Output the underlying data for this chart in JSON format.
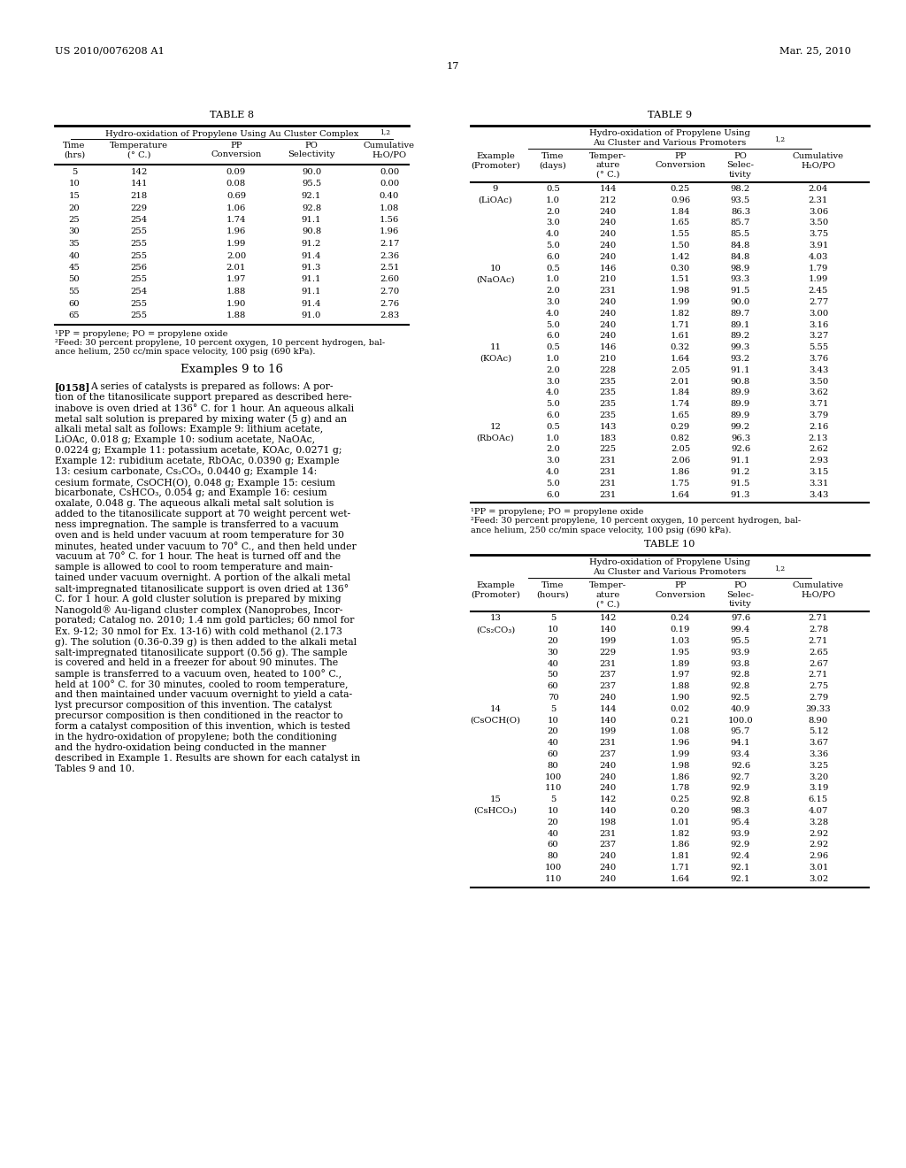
{
  "header_left": "US 2010/0076208 A1",
  "header_right": "Mar. 25, 2010",
  "page_number": "17",
  "table8": {
    "title": "TABLE 8",
    "subtitle": "Hydro-oxidation of Propylene Using Au Cluster Complex",
    "subtitle_sup": "1,2",
    "data": [
      [
        5,
        142,
        0.09,
        90.0,
        0.0
      ],
      [
        10,
        141,
        0.08,
        95.5,
        0.0
      ],
      [
        15,
        218,
        0.69,
        92.1,
        0.4
      ],
      [
        20,
        229,
        1.06,
        92.8,
        1.08
      ],
      [
        25,
        254,
        1.74,
        91.1,
        1.56
      ],
      [
        30,
        255,
        1.96,
        90.8,
        1.96
      ],
      [
        35,
        255,
        1.99,
        91.2,
        2.17
      ],
      [
        40,
        255,
        2.0,
        91.4,
        2.36
      ],
      [
        45,
        256,
        2.01,
        91.3,
        2.51
      ],
      [
        50,
        255,
        1.97,
        91.1,
        2.6
      ],
      [
        55,
        254,
        1.88,
        91.1,
        2.7
      ],
      [
        60,
        255,
        1.9,
        91.4,
        2.76
      ],
      [
        65,
        255,
        1.88,
        91.0,
        2.83
      ]
    ],
    "footnote1": "¹PP = propylene; PO = propylene oxide",
    "footnote2a": "²Feed: 30 percent propylene, 10 percent oxygen, 10 percent hydrogen, bal-",
    "footnote2b": "ance helium, 250 cc/min space velocity, 100 psig (690 kPa)."
  },
  "table9": {
    "title": "TABLE 9",
    "subtitle_line1": "Hydro-oxidation of Propylene Using",
    "subtitle_line2": "Au Cluster and Various Promoters",
    "subtitle_sup": "1,2",
    "data": [
      [
        "9",
        "0.5",
        "144",
        "0.25",
        "98.2",
        "2.04"
      ],
      [
        "(LiOAc)",
        "1.0",
        "212",
        "0.96",
        "93.5",
        "2.31"
      ],
      [
        "",
        "2.0",
        "240",
        "1.84",
        "86.3",
        "3.06"
      ],
      [
        "",
        "3.0",
        "240",
        "1.65",
        "85.7",
        "3.50"
      ],
      [
        "",
        "4.0",
        "240",
        "1.55",
        "85.5",
        "3.75"
      ],
      [
        "",
        "5.0",
        "240",
        "1.50",
        "84.8",
        "3.91"
      ],
      [
        "",
        "6.0",
        "240",
        "1.42",
        "84.8",
        "4.03"
      ],
      [
        "10",
        "0.5",
        "146",
        "0.30",
        "98.9",
        "1.79"
      ],
      [
        "(NaOAc)",
        "1.0",
        "210",
        "1.51",
        "93.3",
        "1.99"
      ],
      [
        "",
        "2.0",
        "231",
        "1.98",
        "91.5",
        "2.45"
      ],
      [
        "",
        "3.0",
        "240",
        "1.99",
        "90.0",
        "2.77"
      ],
      [
        "",
        "4.0",
        "240",
        "1.82",
        "89.7",
        "3.00"
      ],
      [
        "",
        "5.0",
        "240",
        "1.71",
        "89.1",
        "3.16"
      ],
      [
        "",
        "6.0",
        "240",
        "1.61",
        "89.2",
        "3.27"
      ],
      [
        "11",
        "0.5",
        "146",
        "0.32",
        "99.3",
        "5.55"
      ],
      [
        "(KOAc)",
        "1.0",
        "210",
        "1.64",
        "93.2",
        "3.76"
      ],
      [
        "",
        "2.0",
        "228",
        "2.05",
        "91.1",
        "3.43"
      ],
      [
        "",
        "3.0",
        "235",
        "2.01",
        "90.8",
        "3.50"
      ],
      [
        "",
        "4.0",
        "235",
        "1.84",
        "89.9",
        "3.62"
      ],
      [
        "",
        "5.0",
        "235",
        "1.74",
        "89.9",
        "3.71"
      ],
      [
        "",
        "6.0",
        "235",
        "1.65",
        "89.9",
        "3.79"
      ],
      [
        "12",
        "0.5",
        "143",
        "0.29",
        "99.2",
        "2.16"
      ],
      [
        "(RbOAc)",
        "1.0",
        "183",
        "0.82",
        "96.3",
        "2.13"
      ],
      [
        "",
        "2.0",
        "225",
        "2.05",
        "92.6",
        "2.62"
      ],
      [
        "",
        "3.0",
        "231",
        "2.06",
        "91.1",
        "2.93"
      ],
      [
        "",
        "4.0",
        "231",
        "1.86",
        "91.2",
        "3.15"
      ],
      [
        "",
        "5.0",
        "231",
        "1.75",
        "91.5",
        "3.31"
      ],
      [
        "",
        "6.0",
        "231",
        "1.64",
        "91.3",
        "3.43"
      ]
    ],
    "footnote1": "¹PP = propylene; PO = propylene oxide",
    "footnote2a": "²Feed: 30 percent propylene, 10 percent oxygen, 10 percent hydrogen, bal-",
    "footnote2b": "ance helium, 250 cc/min space velocity, 100 psig (690 kPa)."
  },
  "table10": {
    "title": "TABLE 10",
    "subtitle_line1": "Hydro-oxidation of Propylene Using",
    "subtitle_line2": "Au Cluster and Various Promoters",
    "subtitle_sup": "1,2",
    "data": [
      [
        "13",
        "5",
        "142",
        "0.24",
        "97.6",
        "2.71"
      ],
      [
        "(Cs₂CO₃)",
        "10",
        "140",
        "0.19",
        "99.4",
        "2.78"
      ],
      [
        "",
        "20",
        "199",
        "1.03",
        "95.5",
        "2.71"
      ],
      [
        "",
        "30",
        "229",
        "1.95",
        "93.9",
        "2.65"
      ],
      [
        "",
        "40",
        "231",
        "1.89",
        "93.8",
        "2.67"
      ],
      [
        "",
        "50",
        "237",
        "1.97",
        "92.8",
        "2.71"
      ],
      [
        "",
        "60",
        "237",
        "1.88",
        "92.8",
        "2.75"
      ],
      [
        "",
        "70",
        "240",
        "1.90",
        "92.5",
        "2.79"
      ],
      [
        "14",
        "5",
        "144",
        "0.02",
        "40.9",
        "39.33"
      ],
      [
        "(CsOCH(O)",
        "10",
        "140",
        "0.21",
        "100.0",
        "8.90"
      ],
      [
        "",
        "20",
        "199",
        "1.08",
        "95.7",
        "5.12"
      ],
      [
        "",
        "40",
        "231",
        "1.96",
        "94.1",
        "3.67"
      ],
      [
        "",
        "60",
        "237",
        "1.99",
        "93.4",
        "3.36"
      ],
      [
        "",
        "80",
        "240",
        "1.98",
        "92.6",
        "3.25"
      ],
      [
        "",
        "100",
        "240",
        "1.86",
        "92.7",
        "3.20"
      ],
      [
        "",
        "110",
        "240",
        "1.78",
        "92.9",
        "3.19"
      ],
      [
        "15",
        "5",
        "142",
        "0.25",
        "92.8",
        "6.15"
      ],
      [
        "(CsHCO₃)",
        "10",
        "140",
        "0.20",
        "98.3",
        "4.07"
      ],
      [
        "",
        "20",
        "198",
        "1.01",
        "95.4",
        "3.28"
      ],
      [
        "",
        "40",
        "231",
        "1.82",
        "93.9",
        "2.92"
      ],
      [
        "",
        "60",
        "237",
        "1.86",
        "92.9",
        "2.92"
      ],
      [
        "",
        "80",
        "240",
        "1.81",
        "92.4",
        "2.96"
      ],
      [
        "",
        "100",
        "240",
        "1.71",
        "92.1",
        "3.01"
      ],
      [
        "",
        "110",
        "240",
        "1.64",
        "92.1",
        "3.02"
      ]
    ]
  },
  "section_title": "Examples 9 to 16",
  "para_num": "[0158]",
  "para_lines": [
    "A series of catalysts is prepared as follows: A por-",
    "tion of the titanosilicate support prepared as described here-",
    "inabove is oven dried at 136° C. for 1 hour. An aqueous alkali",
    "metal salt solution is prepared by mixing water (5 g) and an",
    "alkali metal salt as follows: Example 9: lithium acetate,",
    "LiOAc, 0.018 g; Example 10: sodium acetate, NaOAc,",
    "0.0224 g; Example 11: potassium acetate, KOAc, 0.0271 g;",
    "Example 12: rubidium acetate, RbOAc, 0.0390 g; Example",
    "13: cesium carbonate, Cs₂CO₃, 0.0440 g; Example 14:",
    "cesium formate, CsOCH(O), 0.048 g; Example 15: cesium",
    "bicarbonate, CsHCO₃, 0.054 g; and Example 16: cesium",
    "oxalate, 0.048 g. The aqueous alkali metal salt solution is",
    "added to the titanosilicate support at 70 weight percent wet-",
    "ness impregnation. The sample is transferred to a vacuum",
    "oven and is held under vacuum at room temperature for 30",
    "minutes, heated under vacuum to 70° C., and then held under",
    "vacuum at 70° C. for 1 hour. The heat is turned off and the",
    "sample is allowed to cool to room temperature and main-",
    "tained under vacuum overnight. A portion of the alkali metal",
    "salt-impregnated titanosilicate support is oven dried at 136°",
    "C. for 1 hour. A gold cluster solution is prepared by mixing",
    "Nanogold® Au-ligand cluster complex (Nanoprobes, Incor-",
    "porated; Catalog no. 2010; 1.4 nm gold particles; 60 nmol for",
    "Ex. 9-12; 30 nmol for Ex. 13-16) with cold methanol (2.173",
    "g). The solution (0.36-0.39 g) is then added to the alkali metal",
    "salt-impregnated titanosilicate support (0.56 g). The sample",
    "is covered and held in a freezer for about 90 minutes. The",
    "sample is transferred to a vacuum oven, heated to 100° C.,",
    "held at 100° C. for 30 minutes, cooled to room temperature,",
    "and then maintained under vacuum overnight to yield a cata-",
    "lyst precursor composition of this invention. The catalyst",
    "precursor composition is then conditioned in the reactor to",
    "form a catalyst composition of this invention, which is tested",
    "in the hydro-oxidation of propylene; both the conditioning",
    "and the hydro-oxidation being conducted in the manner",
    "described in Example 1. Results are shown for each catalyst in",
    "Tables 9 and 10."
  ]
}
